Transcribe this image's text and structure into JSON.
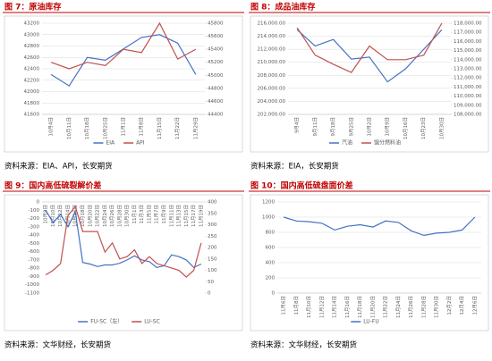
{
  "chart_data": [
    {
      "type": "line",
      "title": "图 7：原油库存",
      "source": "资料来源：EIA、API，长安期货",
      "categories": [
        "10月4日",
        "10月11日",
        "10月18日",
        "10月25日",
        "11月1日",
        "11月8日",
        "11月15日",
        "11月22日",
        "11月29日"
      ],
      "series": [
        {
          "name": "EIA",
          "color": "#4472c4",
          "values": [
            42300,
            42100,
            42600,
            42550,
            42750,
            42950,
            43000,
            42850,
            42300
          ]
        },
        {
          "name": "API",
          "color": "#c0504d",
          "axis": "y2",
          "values": [
            45200,
            45100,
            45200,
            45150,
            45400,
            45350,
            45800,
            45250,
            45400
          ]
        }
      ],
      "ylim": [
        41600,
        43200
      ],
      "yticks": [
        41600,
        41800,
        42000,
        42200,
        42400,
        42600,
        42800,
        43000,
        43200
      ],
      "y2lim": [
        44400,
        45800
      ],
      "y2ticks": [
        44400,
        44600,
        44800,
        45000,
        45200,
        45400,
        45600,
        45800
      ],
      "grid": true
    },
    {
      "type": "line",
      "title": "图 8：成品油库存",
      "source": "资料来源：EIA，长安期货",
      "categories": [
        "9月4日",
        "9月11日",
        "9月18日",
        "9月25日",
        "10月2日",
        "10月9日",
        "10月16日",
        "10月23日",
        "10月30日"
      ],
      "series": [
        {
          "name": "汽油",
          "color": "#4472c4",
          "values": [
            215000,
            212500,
            213500,
            210500,
            210800,
            207000,
            209000,
            212000,
            215000
          ]
        },
        {
          "name": "馏分燃料油",
          "color": "#c0504d",
          "axis": "y2",
          "values": [
            117500,
            114500,
            113500,
            112600,
            115500,
            114000,
            114000,
            114500,
            118000
          ]
        }
      ],
      "ylim": [
        202000,
        216000
      ],
      "yticks": [
        {
          "value": 202000,
          "label": "202,000.00"
        },
        {
          "value": 204000,
          "label": "204,000.00"
        },
        {
          "value": 206000,
          "label": "206,000.00"
        },
        {
          "value": 208000,
          "label": "208,000.00"
        },
        {
          "value": 210000,
          "label": "210,000.00"
        },
        {
          "value": 212000,
          "label": "212,000.00"
        },
        {
          "value": 214000,
          "label": "214,000.00"
        },
        {
          "value": 216000,
          "label": "216,000.00"
        }
      ],
      "y2lim": [
        108000,
        118000
      ],
      "y2ticks": [
        {
          "value": 108000,
          "label": "108,000.00"
        },
        {
          "value": 109000,
          "label": "109,000.00"
        },
        {
          "value": 110000,
          "label": "110,000.00"
        },
        {
          "value": 111000,
          "label": "111,000.00"
        },
        {
          "value": 112000,
          "label": "112,000.00"
        },
        {
          "value": 113000,
          "label": "113,000.00"
        },
        {
          "value": 114000,
          "label": "114,000.00"
        },
        {
          "value": 115000,
          "label": "115,000.00"
        },
        {
          "value": 116000,
          "label": "116,000.00"
        },
        {
          "value": 117000,
          "label": "117,000.00"
        },
        {
          "value": 118000,
          "label": "118,000.00"
        }
      ],
      "grid": true
    },
    {
      "type": "line",
      "title": "图 9：国内高低硫裂解价差",
      "source": "资料来源：文华财经，长安期货",
      "categories": [
        "10月8日",
        "10月10日",
        "10月12日",
        "10月14日",
        "10月16日",
        "10月18日",
        "10月20日",
        "10月22日",
        "10月24日",
        "10月26日",
        "10月28日",
        "10月30日",
        "11月1日",
        "11月3日",
        "11月5日",
        "11月7日",
        "11月9日",
        "11月11日",
        "11月13日",
        "11月15日",
        "11月17日",
        "11月19日"
      ],
      "series": [
        {
          "name": "FU-SC（左）",
          "color": "#4472c4",
          "values": [
            -100,
            -250,
            -150,
            -300,
            -120,
            -730,
            -750,
            -780,
            -760,
            -760,
            -740,
            -700,
            -650,
            -700,
            -720,
            -790,
            -770,
            -640,
            -660,
            -700,
            -790,
            -750
          ]
        },
        {
          "name": "LU-SC",
          "color": "#c0504d",
          "axis": "y2",
          "values": [
            80,
            100,
            130,
            340,
            380,
            270,
            270,
            270,
            180,
            220,
            150,
            160,
            190,
            130,
            160,
            130,
            120,
            110,
            100,
            70,
            100,
            220
          ]
        }
      ],
      "ylim": [
        -1100,
        0
      ],
      "yticks": [
        -1100,
        -1000,
        -900,
        -800,
        -700,
        -600,
        -500,
        -400,
        -300,
        -200,
        -100,
        0
      ],
      "y2lim": [
        0,
        400
      ],
      "y2ticks": [
        0,
        50,
        100,
        150,
        200,
        250,
        300,
        350,
        400
      ],
      "grid": false
    },
    {
      "type": "line",
      "title": "图 10：国内高低硫盘面价差",
      "source": "资料来源：文华财经，长安期货",
      "categories": [
        "11月6日",
        "11月8日",
        "11月10日",
        "11月12日",
        "11月14日",
        "11月16日",
        "11月18日",
        "11月20日",
        "11月22日",
        "11月24日",
        "11月26日",
        "11月28日",
        "11月30日",
        "12月2日",
        "12月4日",
        "12月6日"
      ],
      "series": [
        {
          "name": "LU-FU",
          "color": "#4472c4",
          "values": [
            1000,
            950,
            940,
            920,
            830,
            880,
            900,
            870,
            950,
            930,
            820,
            760,
            790,
            800,
            830,
            1000
          ]
        }
      ],
      "ylim": [
        0,
        1200
      ],
      "yticks": [
        0,
        200,
        400,
        600,
        800,
        1000,
        1200
      ],
      "grid": true
    }
  ]
}
